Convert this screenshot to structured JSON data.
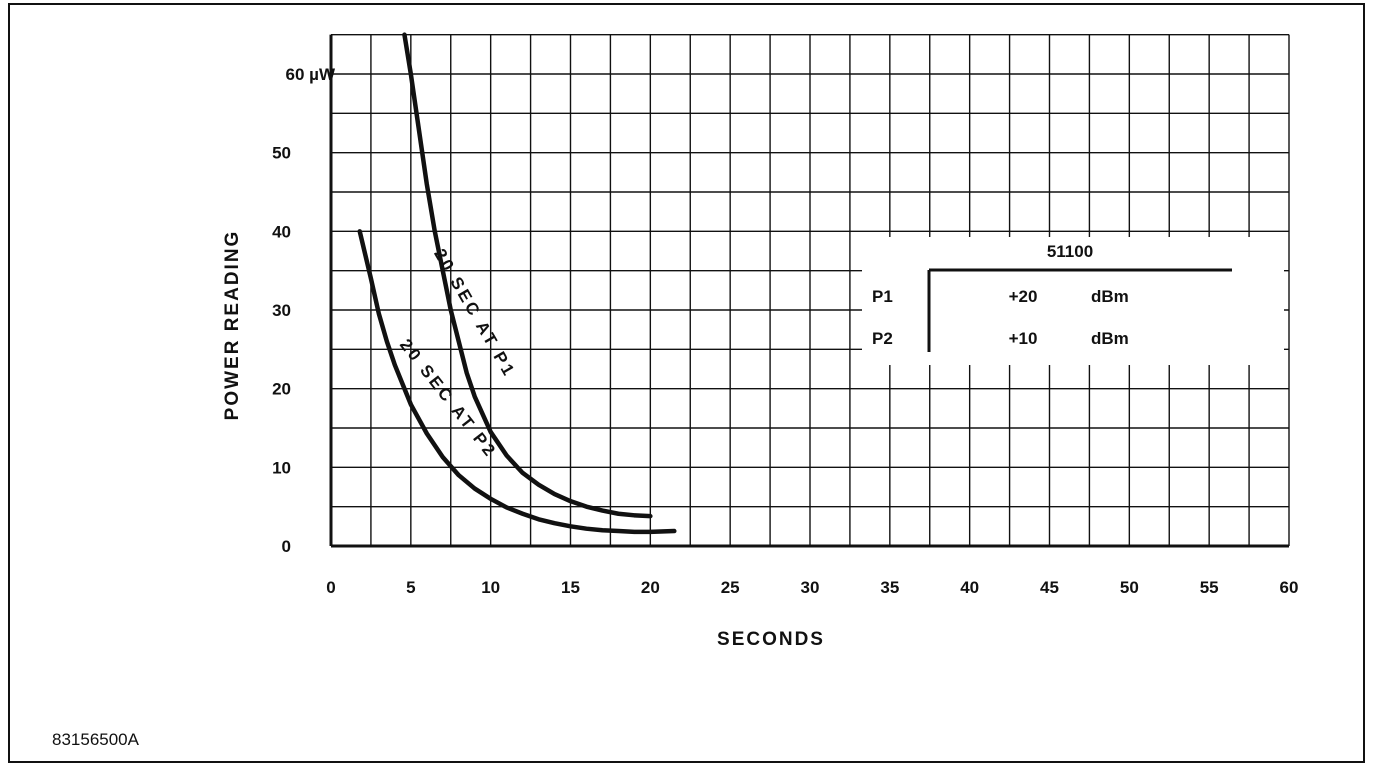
{
  "figure_id": "83156500A",
  "chart_data": {
    "type": "line",
    "xlabel": "SECONDS",
    "ylabel": "POWER READING",
    "xlim": [
      0,
      60
    ],
    "ylim": [
      0,
      65
    ],
    "x_ticks": [
      "0",
      "5",
      "10",
      "15",
      "20",
      "25",
      "30",
      "35",
      "40",
      "45",
      "50",
      "55",
      "60"
    ],
    "y_ticks": [
      "0",
      "10",
      "20",
      "30",
      "40",
      "50",
      "60 µW"
    ],
    "y_tick_values": [
      0,
      10,
      20,
      30,
      40,
      50,
      60
    ],
    "grid": true,
    "series": [
      {
        "name": "20 SEC AT P1",
        "x": [
          4.6,
          5,
          5.5,
          6,
          6.5,
          7,
          7.5,
          8,
          8.5,
          9,
          10,
          11,
          12,
          13,
          14,
          15,
          16,
          17,
          18,
          19,
          20
        ],
        "y": [
          65,
          60,
          53,
          46,
          40,
          35,
          30,
          26,
          22,
          19,
          14.5,
          11.5,
          9.3,
          7.8,
          6.6,
          5.7,
          5.0,
          4.5,
          4.1,
          3.9,
          3.8
        ]
      },
      {
        "name": "20 SEC AT P2",
        "x": [
          1.8,
          2.5,
          3,
          3.5,
          4,
          4.5,
          5,
          6,
          7,
          8,
          9,
          10,
          11,
          12,
          13,
          14,
          15,
          16,
          17,
          18,
          19,
          20,
          21.5
        ],
        "y": [
          40,
          34,
          29.5,
          26,
          23,
          20.5,
          18,
          14.3,
          11.3,
          9,
          7.3,
          6,
          4.9,
          4.1,
          3.4,
          2.9,
          2.5,
          2.2,
          2.0,
          1.9,
          1.8,
          1.8,
          1.9
        ]
      }
    ],
    "legend_table": {
      "header": "51100",
      "rows": [
        {
          "label": "P1",
          "value": "+20",
          "unit": "dBm"
        },
        {
          "label": "P2",
          "value": "+10",
          "unit": "dBm"
        }
      ]
    }
  }
}
